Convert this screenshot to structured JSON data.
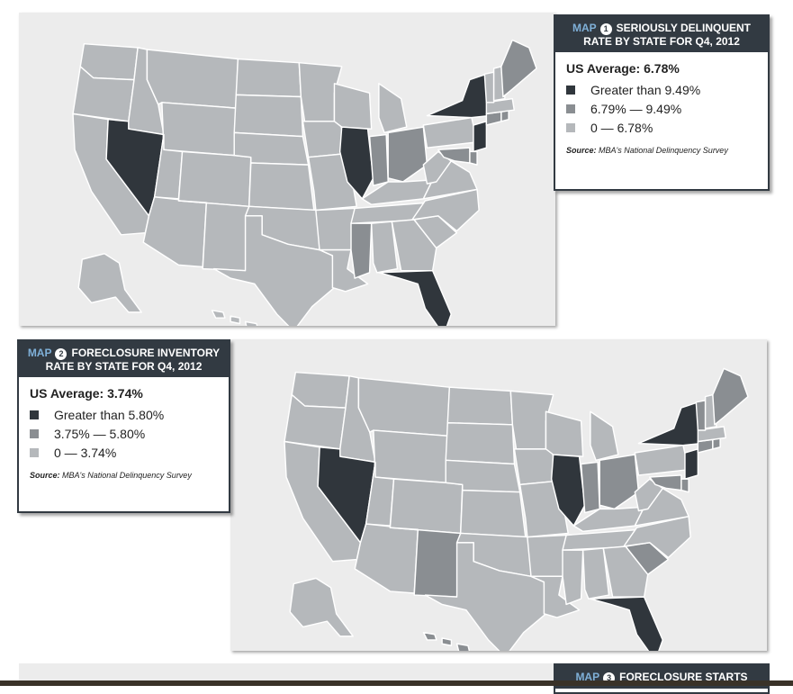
{
  "colors": {
    "dark": "#30363c",
    "mid": "#8a8e92",
    "light": "#b5b8bb",
    "panel_bg": "#ececec",
    "header_bg": "#323a42",
    "map_word": "#7fb0d8"
  },
  "maps": [
    {
      "map_word": "MAP",
      "number": "1",
      "title_line1": "SERIOUSLY DELINQUENT",
      "title_line2": "RATE BY STATE FOR Q4, 2012",
      "average": "US Average: 6.78%",
      "legend": [
        {
          "label": "Greater than 9.49%",
          "category": "dark"
        },
        {
          "label": "6.79% — 9.49%",
          "category": "mid"
        },
        {
          "label": "0 — 6.78%",
          "category": "light"
        }
      ],
      "source_label": "Source:",
      "source_text": "MBA's National Delinquency Survey",
      "state_categories": {
        "NV": "dark",
        "IL": "dark",
        "NY": "dark",
        "NJ": "dark",
        "FL": "dark",
        "IN": "mid",
        "OH": "mid",
        "MS": "mid",
        "ME": "mid",
        "CT": "mid",
        "RI": "mid",
        "MD": "mid",
        "DE": "mid"
      }
    },
    {
      "map_word": "MAP",
      "number": "2",
      "title_line1": "FORECLOSURE INVENTORY",
      "title_line2": "RATE BY STATE FOR Q4, 2012",
      "average": "US Average: 3.74%",
      "legend": [
        {
          "label": "Greater than 5.80%",
          "category": "dark"
        },
        {
          "label": "3.75% — 5.80%",
          "category": "mid"
        },
        {
          "label": "0 — 3.74%",
          "category": "light"
        }
      ],
      "source_label": "Source:",
      "source_text": "MBA's National Delinquency Survey",
      "state_categories": {
        "NV": "dark",
        "IL": "dark",
        "NY": "dark",
        "NJ": "dark",
        "FL": "dark",
        "IN": "mid",
        "OH": "mid",
        "NM": "mid",
        "SC": "mid",
        "ME": "mid",
        "VT": "mid",
        "CT": "mid",
        "RI": "mid",
        "MD": "mid",
        "DE": "mid",
        "HI": "mid"
      }
    },
    {
      "map_word": "MAP",
      "number": "3",
      "title_line1": "FORECLOSURE STARTS"
    }
  ]
}
